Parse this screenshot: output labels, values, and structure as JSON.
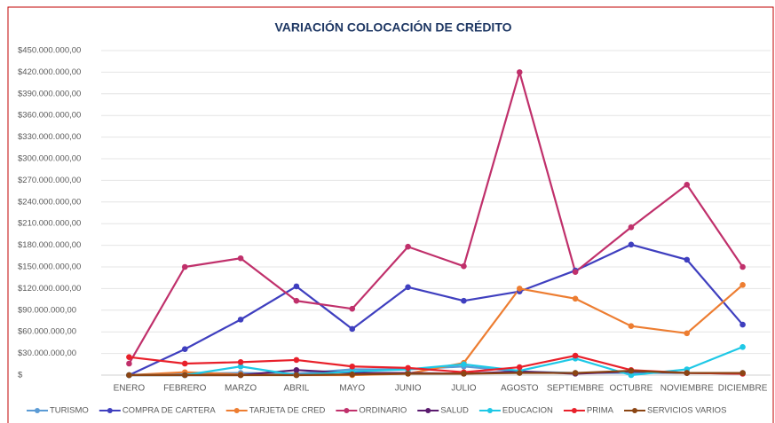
{
  "chart_data": {
    "type": "line",
    "title": "VARIACIÓN COLOCACIÓN DE CRÉDITO",
    "categories": [
      "ENERO",
      "FEBRERO",
      "MARZO",
      "ABRIL",
      "MAYO",
      "JUNIO",
      "JULIO",
      "AGOSTO",
      "SEPTIEMBRE",
      "OCTUBRE",
      "NOVIEMBRE",
      "DICIEMBRE"
    ],
    "ylim": [
      0,
      450000000
    ],
    "yticks": [
      {
        "value": 0,
        "label": "$"
      },
      {
        "value": 30000000,
        "label": "$30.000.000,00"
      },
      {
        "value": 60000000,
        "label": "$60.000.000,00"
      },
      {
        "value": 90000000,
        "label": "$90.000.000,00"
      },
      {
        "value": 120000000,
        "label": "$120.000.000,00"
      },
      {
        "value": 150000000,
        "label": "$150.000.000,00"
      },
      {
        "value": 180000000,
        "label": "$180.000.000,00"
      },
      {
        "value": 210000000,
        "label": "$210.000.000,00"
      },
      {
        "value": 240000000,
        "label": "$240.000.000,00"
      },
      {
        "value": 270000000,
        "label": "$270.000.000,00"
      },
      {
        "value": 300000000,
        "label": "$300.000.000,00"
      },
      {
        "value": 330000000,
        "label": "$330.000.000,00"
      },
      {
        "value": 360000000,
        "label": "$360.000.000,00"
      },
      {
        "value": 390000000,
        "label": "$390.000.000,00"
      },
      {
        "value": 420000000,
        "label": "$420.000.000,00"
      },
      {
        "value": 450000000,
        "label": "$450.000.000,00"
      }
    ],
    "grid": true,
    "legend": "bottom",
    "series": [
      {
        "name": "TURISMO",
        "color": "#5b9bd5",
        "values": [
          0,
          2000000,
          3000000,
          2000000,
          8000000,
          8000000,
          12000000,
          5000000,
          3000000,
          3000000,
          3000000,
          3000000
        ]
      },
      {
        "name": "COMPRA DE CARTERA",
        "color": "#3f3fbf",
        "values": [
          0,
          36000000,
          77000000,
          123000000,
          64000000,
          122000000,
          103000000,
          116000000,
          145000000,
          181000000,
          160000000,
          70000000
        ]
      },
      {
        "name": "TARJETA DE CRED",
        "color": "#ed7d31",
        "values": [
          0,
          4000000,
          1000000,
          0,
          0,
          2000000,
          17000000,
          120000000,
          106000000,
          68000000,
          58000000,
          125000000
        ]
      },
      {
        "name": "ORDINARIO",
        "color": "#c0306b",
        "values": [
          16000000,
          150000000,
          162000000,
          103000000,
          92000000,
          178000000,
          151000000,
          420000000,
          143000000,
          205000000,
          264000000,
          150000000
        ]
      },
      {
        "name": "SALUD",
        "color": "#5a1a6e",
        "values": [
          0,
          0,
          0,
          7000000,
          3000000,
          3000000,
          2000000,
          5000000,
          2000000,
          5000000,
          3000000,
          2000000
        ]
      },
      {
        "name": "EDUCACION",
        "color": "#1ec8e6",
        "values": [
          0,
          0,
          12000000,
          0,
          5000000,
          8000000,
          15000000,
          6000000,
          23000000,
          0,
          8000000,
          39000000
        ]
      },
      {
        "name": "PRIMA",
        "color": "#e8202a",
        "values": [
          25000000,
          16000000,
          18000000,
          21000000,
          12000000,
          10000000,
          4000000,
          11000000,
          27000000,
          7000000,
          3000000,
          2000000
        ]
      },
      {
        "name": "SERVICIOS VARIOS",
        "color": "#8b4513",
        "values": [
          0,
          0,
          0,
          0,
          1000000,
          2000000,
          2000000,
          3000000,
          3000000,
          6000000,
          3000000,
          3000000
        ]
      }
    ]
  }
}
